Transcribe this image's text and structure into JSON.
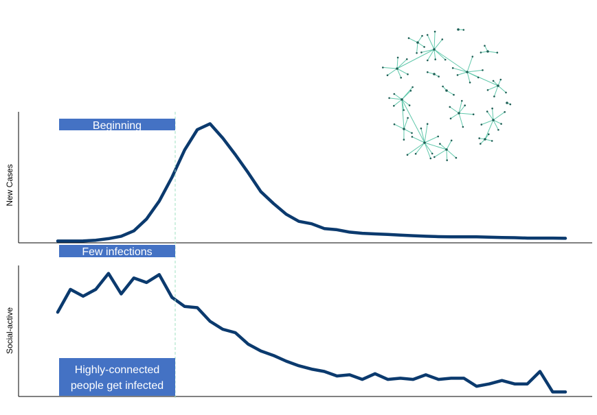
{
  "panels": {
    "top": {
      "ylabel": "New Cases"
    },
    "bottom": {
      "ylabel": "Social-active"
    }
  },
  "annotations": {
    "beginning": "Beginning",
    "few_infections": "Few infections",
    "highly_connected_line1": "Highly-connected",
    "highly_connected_line2": "people get infected"
  },
  "colors": {
    "line": "#0b3a6e",
    "box": "#4472c4",
    "box_text": "#ffffff",
    "divider": "#9fe0c0",
    "network": "#5fc7aa",
    "node": "#1f5f56"
  },
  "chart_data": [
    {
      "type": "line",
      "name": "new-cases",
      "title": "",
      "xlabel": "",
      "ylabel": "New Cases",
      "x": [
        0,
        1,
        2,
        3,
        4,
        5,
        6,
        7,
        8,
        9,
        10,
        11,
        12,
        13,
        14,
        15,
        16,
        17,
        18,
        19,
        20,
        21,
        22,
        23,
        24,
        25,
        26,
        27,
        28,
        29,
        30,
        31,
        32,
        33,
        34,
        35,
        36,
        37,
        38,
        39,
        40
      ],
      "series": [
        {
          "values": [
            1.5,
            1.5,
            1.6,
            2.2,
            3.5,
            5.5,
            10,
            20,
            35,
            55,
            78,
            95,
            100,
            88,
            74,
            59,
            43,
            33,
            24,
            18,
            16,
            12,
            11,
            9,
            8,
            7.5,
            7,
            6.5,
            6,
            5.5,
            5.2,
            5,
            5,
            5,
            4.8,
            4.5,
            4.3,
            4,
            4,
            4,
            3.8
          ]
        }
      ],
      "ylim": [
        0,
        110
      ],
      "grid": false
    },
    {
      "type": "line",
      "name": "social-active",
      "title": "",
      "xlabel": "",
      "ylabel": "Social-active",
      "x": [
        0,
        1,
        2,
        3,
        4,
        5,
        6,
        7,
        8,
        9,
        10,
        11,
        12,
        13,
        14,
        15,
        16,
        17,
        18,
        19,
        20,
        21,
        22,
        23,
        24,
        25,
        26,
        27,
        28,
        29,
        30,
        31,
        32,
        33,
        34,
        35,
        36,
        37,
        38,
        39,
        40
      ],
      "series": [
        {
          "values": [
            74,
            94,
            88,
            94,
            108,
            90,
            104,
            100,
            107,
            87,
            79,
            78,
            66,
            59,
            56,
            46,
            40,
            36,
            31,
            27,
            24,
            22,
            18,
            19,
            15,
            20,
            15,
            16,
            15,
            19,
            15,
            16,
            16,
            9,
            11,
            14,
            11,
            11,
            22,
            4,
            4
          ]
        }
      ],
      "ylim": [
        0,
        115
      ],
      "grid": false
    }
  ]
}
